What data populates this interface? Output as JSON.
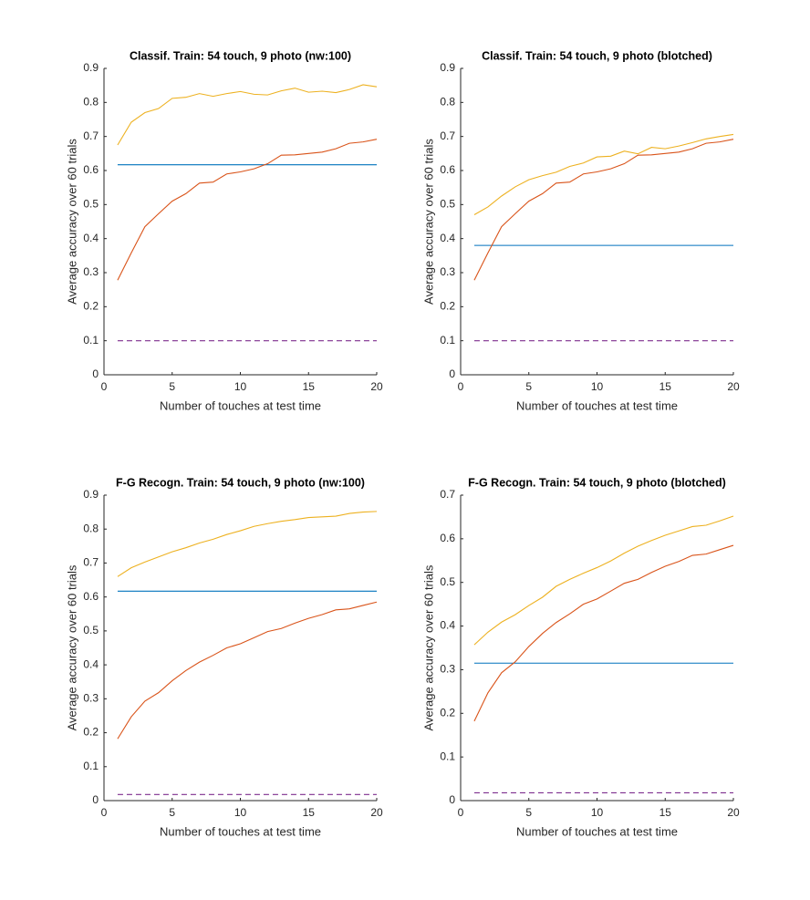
{
  "chart_data": [
    {
      "type": "line",
      "title": "Classif. Train: 54 touch, 9 photo (nw:100)",
      "xlabel": "Number of touches at test time",
      "ylabel": "Average accuracy over 60 trials",
      "x": [
        1,
        2,
        3,
        4,
        5,
        6,
        7,
        8,
        9,
        10,
        11,
        12,
        13,
        14,
        15,
        16,
        17,
        18,
        19,
        20
      ],
      "xlim": [
        0,
        20
      ],
      "xticks": [
        0,
        5,
        10,
        15,
        20
      ],
      "ylim": [
        0,
        0.9
      ],
      "yticks": [
        0,
        0.1,
        0.2,
        0.3,
        0.4,
        0.5,
        0.6,
        0.7,
        0.8,
        0.9
      ],
      "series": [
        {
          "color": "#0072BD",
          "values": [
            0.617,
            0.617,
            0.617,
            0.617,
            0.617,
            0.617,
            0.617,
            0.617,
            0.617,
            0.617,
            0.617,
            0.617,
            0.617,
            0.617,
            0.617,
            0.617,
            0.617,
            0.617,
            0.617,
            0.617
          ]
        },
        {
          "color": "#D95319",
          "values": [
            0.278,
            0.358,
            0.435,
            0.473,
            0.51,
            0.532,
            0.563,
            0.566,
            0.59,
            0.596,
            0.605,
            0.62,
            0.645,
            0.646,
            0.65,
            0.654,
            0.664,
            0.68,
            0.684,
            0.692
          ]
        },
        {
          "color": "#EDB120",
          "values": [
            0.675,
            0.742,
            0.77,
            0.782,
            0.812,
            0.815,
            0.826,
            0.818,
            0.826,
            0.832,
            0.824,
            0.822,
            0.834,
            0.842,
            0.83,
            0.833,
            0.829,
            0.838,
            0.852,
            0.846
          ]
        },
        {
          "color": "#7E2F8E",
          "dash": true,
          "values": [
            0.1,
            0.1,
            0.1,
            0.1,
            0.1,
            0.1,
            0.1,
            0.1,
            0.1,
            0.1,
            0.1,
            0.1,
            0.1,
            0.1,
            0.1,
            0.1,
            0.1,
            0.1,
            0.1,
            0.1
          ]
        }
      ]
    },
    {
      "type": "line",
      "title": "Classif. Train: 54 touch, 9 photo (blotched)",
      "xlabel": "Number of touches at test time",
      "ylabel": "Average accuracy over 60 trials",
      "x": [
        1,
        2,
        3,
        4,
        5,
        6,
        7,
        8,
        9,
        10,
        11,
        12,
        13,
        14,
        15,
        16,
        17,
        18,
        19,
        20
      ],
      "xlim": [
        0,
        20
      ],
      "xticks": [
        0,
        5,
        10,
        15,
        20
      ],
      "ylim": [
        0,
        0.9
      ],
      "yticks": [
        0,
        0.1,
        0.2,
        0.3,
        0.4,
        0.5,
        0.6,
        0.7,
        0.8,
        0.9
      ],
      "series": [
        {
          "color": "#0072BD",
          "values": [
            0.38,
            0.38,
            0.38,
            0.38,
            0.38,
            0.38,
            0.38,
            0.38,
            0.38,
            0.38,
            0.38,
            0.38,
            0.38,
            0.38,
            0.38,
            0.38,
            0.38,
            0.38,
            0.38,
            0.38
          ]
        },
        {
          "color": "#D95319",
          "values": [
            0.278,
            0.358,
            0.435,
            0.473,
            0.51,
            0.532,
            0.563,
            0.566,
            0.59,
            0.596,
            0.605,
            0.62,
            0.645,
            0.646,
            0.65,
            0.654,
            0.664,
            0.68,
            0.684,
            0.692
          ]
        },
        {
          "color": "#EDB120",
          "values": [
            0.47,
            0.493,
            0.525,
            0.552,
            0.573,
            0.585,
            0.595,
            0.612,
            0.622,
            0.64,
            0.642,
            0.657,
            0.649,
            0.668,
            0.664,
            0.672,
            0.682,
            0.693,
            0.7,
            0.706
          ]
        },
        {
          "color": "#7E2F8E",
          "dash": true,
          "values": [
            0.1,
            0.1,
            0.1,
            0.1,
            0.1,
            0.1,
            0.1,
            0.1,
            0.1,
            0.1,
            0.1,
            0.1,
            0.1,
            0.1,
            0.1,
            0.1,
            0.1,
            0.1,
            0.1,
            0.1
          ]
        }
      ]
    },
    {
      "type": "line",
      "title": "F-G Recogn. Train: 54 touch, 9 photo (nw:100)",
      "xlabel": "Number of touches at test time",
      "ylabel": "Average accuracy over 60 trials",
      "x": [
        1,
        2,
        3,
        4,
        5,
        6,
        7,
        8,
        9,
        10,
        11,
        12,
        13,
        14,
        15,
        16,
        17,
        18,
        19,
        20
      ],
      "xlim": [
        0,
        20
      ],
      "xticks": [
        0,
        5,
        10,
        15,
        20
      ],
      "ylim": [
        0,
        0.9
      ],
      "yticks": [
        0,
        0.1,
        0.2,
        0.3,
        0.4,
        0.5,
        0.6,
        0.7,
        0.8,
        0.9
      ],
      "series": [
        {
          "color": "#0072BD",
          "values": [
            0.617,
            0.617,
            0.617,
            0.617,
            0.617,
            0.617,
            0.617,
            0.617,
            0.617,
            0.617,
            0.617,
            0.617,
            0.617,
            0.617,
            0.617,
            0.617,
            0.617,
            0.617,
            0.617,
            0.617
          ]
        },
        {
          "color": "#D95319",
          "values": [
            0.182,
            0.247,
            0.293,
            0.318,
            0.353,
            0.383,
            0.408,
            0.428,
            0.45,
            0.462,
            0.48,
            0.498,
            0.507,
            0.523,
            0.537,
            0.548,
            0.562,
            0.565,
            0.575,
            0.585
          ]
        },
        {
          "color": "#EDB120",
          "values": [
            0.66,
            0.686,
            0.703,
            0.718,
            0.733,
            0.745,
            0.759,
            0.77,
            0.784,
            0.795,
            0.808,
            0.816,
            0.823,
            0.828,
            0.834,
            0.836,
            0.838,
            0.846,
            0.85,
            0.852
          ]
        },
        {
          "color": "#7E2F8E",
          "dash": true,
          "values": [
            0.018,
            0.018,
            0.018,
            0.018,
            0.018,
            0.018,
            0.018,
            0.018,
            0.018,
            0.018,
            0.018,
            0.018,
            0.018,
            0.018,
            0.018,
            0.018,
            0.018,
            0.018,
            0.018,
            0.018
          ]
        }
      ]
    },
    {
      "type": "line",
      "title": "F-G Recogn. Train: 54 touch, 9 photo (blotched)",
      "xlabel": "Number of touches at test time",
      "ylabel": "Average accuracy over 60 trials",
      "x": [
        1,
        2,
        3,
        4,
        5,
        6,
        7,
        8,
        9,
        10,
        11,
        12,
        13,
        14,
        15,
        16,
        17,
        18,
        19,
        20
      ],
      "xlim": [
        0,
        20
      ],
      "xticks": [
        0,
        5,
        10,
        15,
        20
      ],
      "ylim": [
        0,
        0.7
      ],
      "yticks": [
        0,
        0.1,
        0.2,
        0.3,
        0.4,
        0.5,
        0.6,
        0.7
      ],
      "series": [
        {
          "color": "#0072BD",
          "values": [
            0.315,
            0.315,
            0.315,
            0.315,
            0.315,
            0.315,
            0.315,
            0.315,
            0.315,
            0.315,
            0.315,
            0.315,
            0.315,
            0.315,
            0.315,
            0.315,
            0.315,
            0.315,
            0.315,
            0.315
          ]
        },
        {
          "color": "#D95319",
          "values": [
            0.182,
            0.247,
            0.293,
            0.318,
            0.353,
            0.383,
            0.408,
            0.428,
            0.45,
            0.462,
            0.48,
            0.498,
            0.507,
            0.523,
            0.537,
            0.548,
            0.562,
            0.565,
            0.575,
            0.585
          ]
        },
        {
          "color": "#EDB120",
          "values": [
            0.357,
            0.386,
            0.409,
            0.426,
            0.447,
            0.466,
            0.491,
            0.507,
            0.521,
            0.534,
            0.549,
            0.567,
            0.583,
            0.596,
            0.608,
            0.618,
            0.628,
            0.631,
            0.641,
            0.652
          ]
        },
        {
          "color": "#7E2F8E",
          "dash": true,
          "values": [
            0.018,
            0.018,
            0.018,
            0.018,
            0.018,
            0.018,
            0.018,
            0.018,
            0.018,
            0.018,
            0.018,
            0.018,
            0.018,
            0.018,
            0.018,
            0.018,
            0.018,
            0.018,
            0.018,
            0.018
          ]
        }
      ]
    }
  ]
}
